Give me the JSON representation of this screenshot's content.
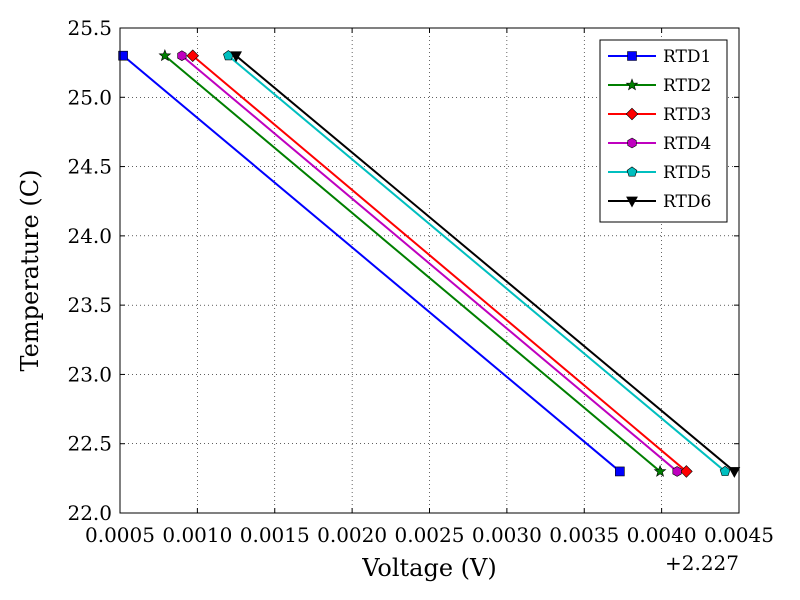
{
  "chart_data": {
    "type": "line",
    "xlabel": "Voltage (V)",
    "ylabel": "Temperature (C)",
    "x_offset_label": "+2.227",
    "xlim": [
      0.0005,
      0.0045
    ],
    "ylim": [
      22.0,
      25.5
    ],
    "x_ticks": [
      "0.0005",
      "0.0010",
      "0.0015",
      "0.0020",
      "0.0025",
      "0.0030",
      "0.0035",
      "0.0040",
      "0.0045"
    ],
    "y_ticks": [
      "22.0",
      "22.5",
      "23.0",
      "23.5",
      "24.0",
      "24.5",
      "25.0",
      "25.5"
    ],
    "grid": true,
    "legend_position": "top-right",
    "series": [
      {
        "name": "RTD1",
        "color": "#0000ff",
        "marker": "square",
        "x": [
          0.00052,
          0.00373
        ],
        "y": [
          25.3,
          22.3
        ]
      },
      {
        "name": "RTD2",
        "color": "#007f00",
        "marker": "star",
        "x": [
          0.00079,
          0.00399
        ],
        "y": [
          25.3,
          22.3
        ]
      },
      {
        "name": "RTD3",
        "color": "#ff0000",
        "marker": "diamond",
        "x": [
          0.00097,
          0.00416
        ],
        "y": [
          25.3,
          22.3
        ]
      },
      {
        "name": "RTD4",
        "color": "#bf00bf",
        "marker": "hexagon",
        "x": [
          0.0009,
          0.0041
        ],
        "y": [
          25.3,
          22.3
        ]
      },
      {
        "name": "RTD5",
        "color": "#00bfbf",
        "marker": "pentagon",
        "x": [
          0.0012,
          0.00441
        ],
        "y": [
          25.3,
          22.3
        ]
      },
      {
        "name": "RTD6",
        "color": "#000000",
        "marker": "triangle-down",
        "x": [
          0.00125,
          0.00447
        ],
        "y": [
          25.3,
          22.3
        ]
      }
    ]
  }
}
